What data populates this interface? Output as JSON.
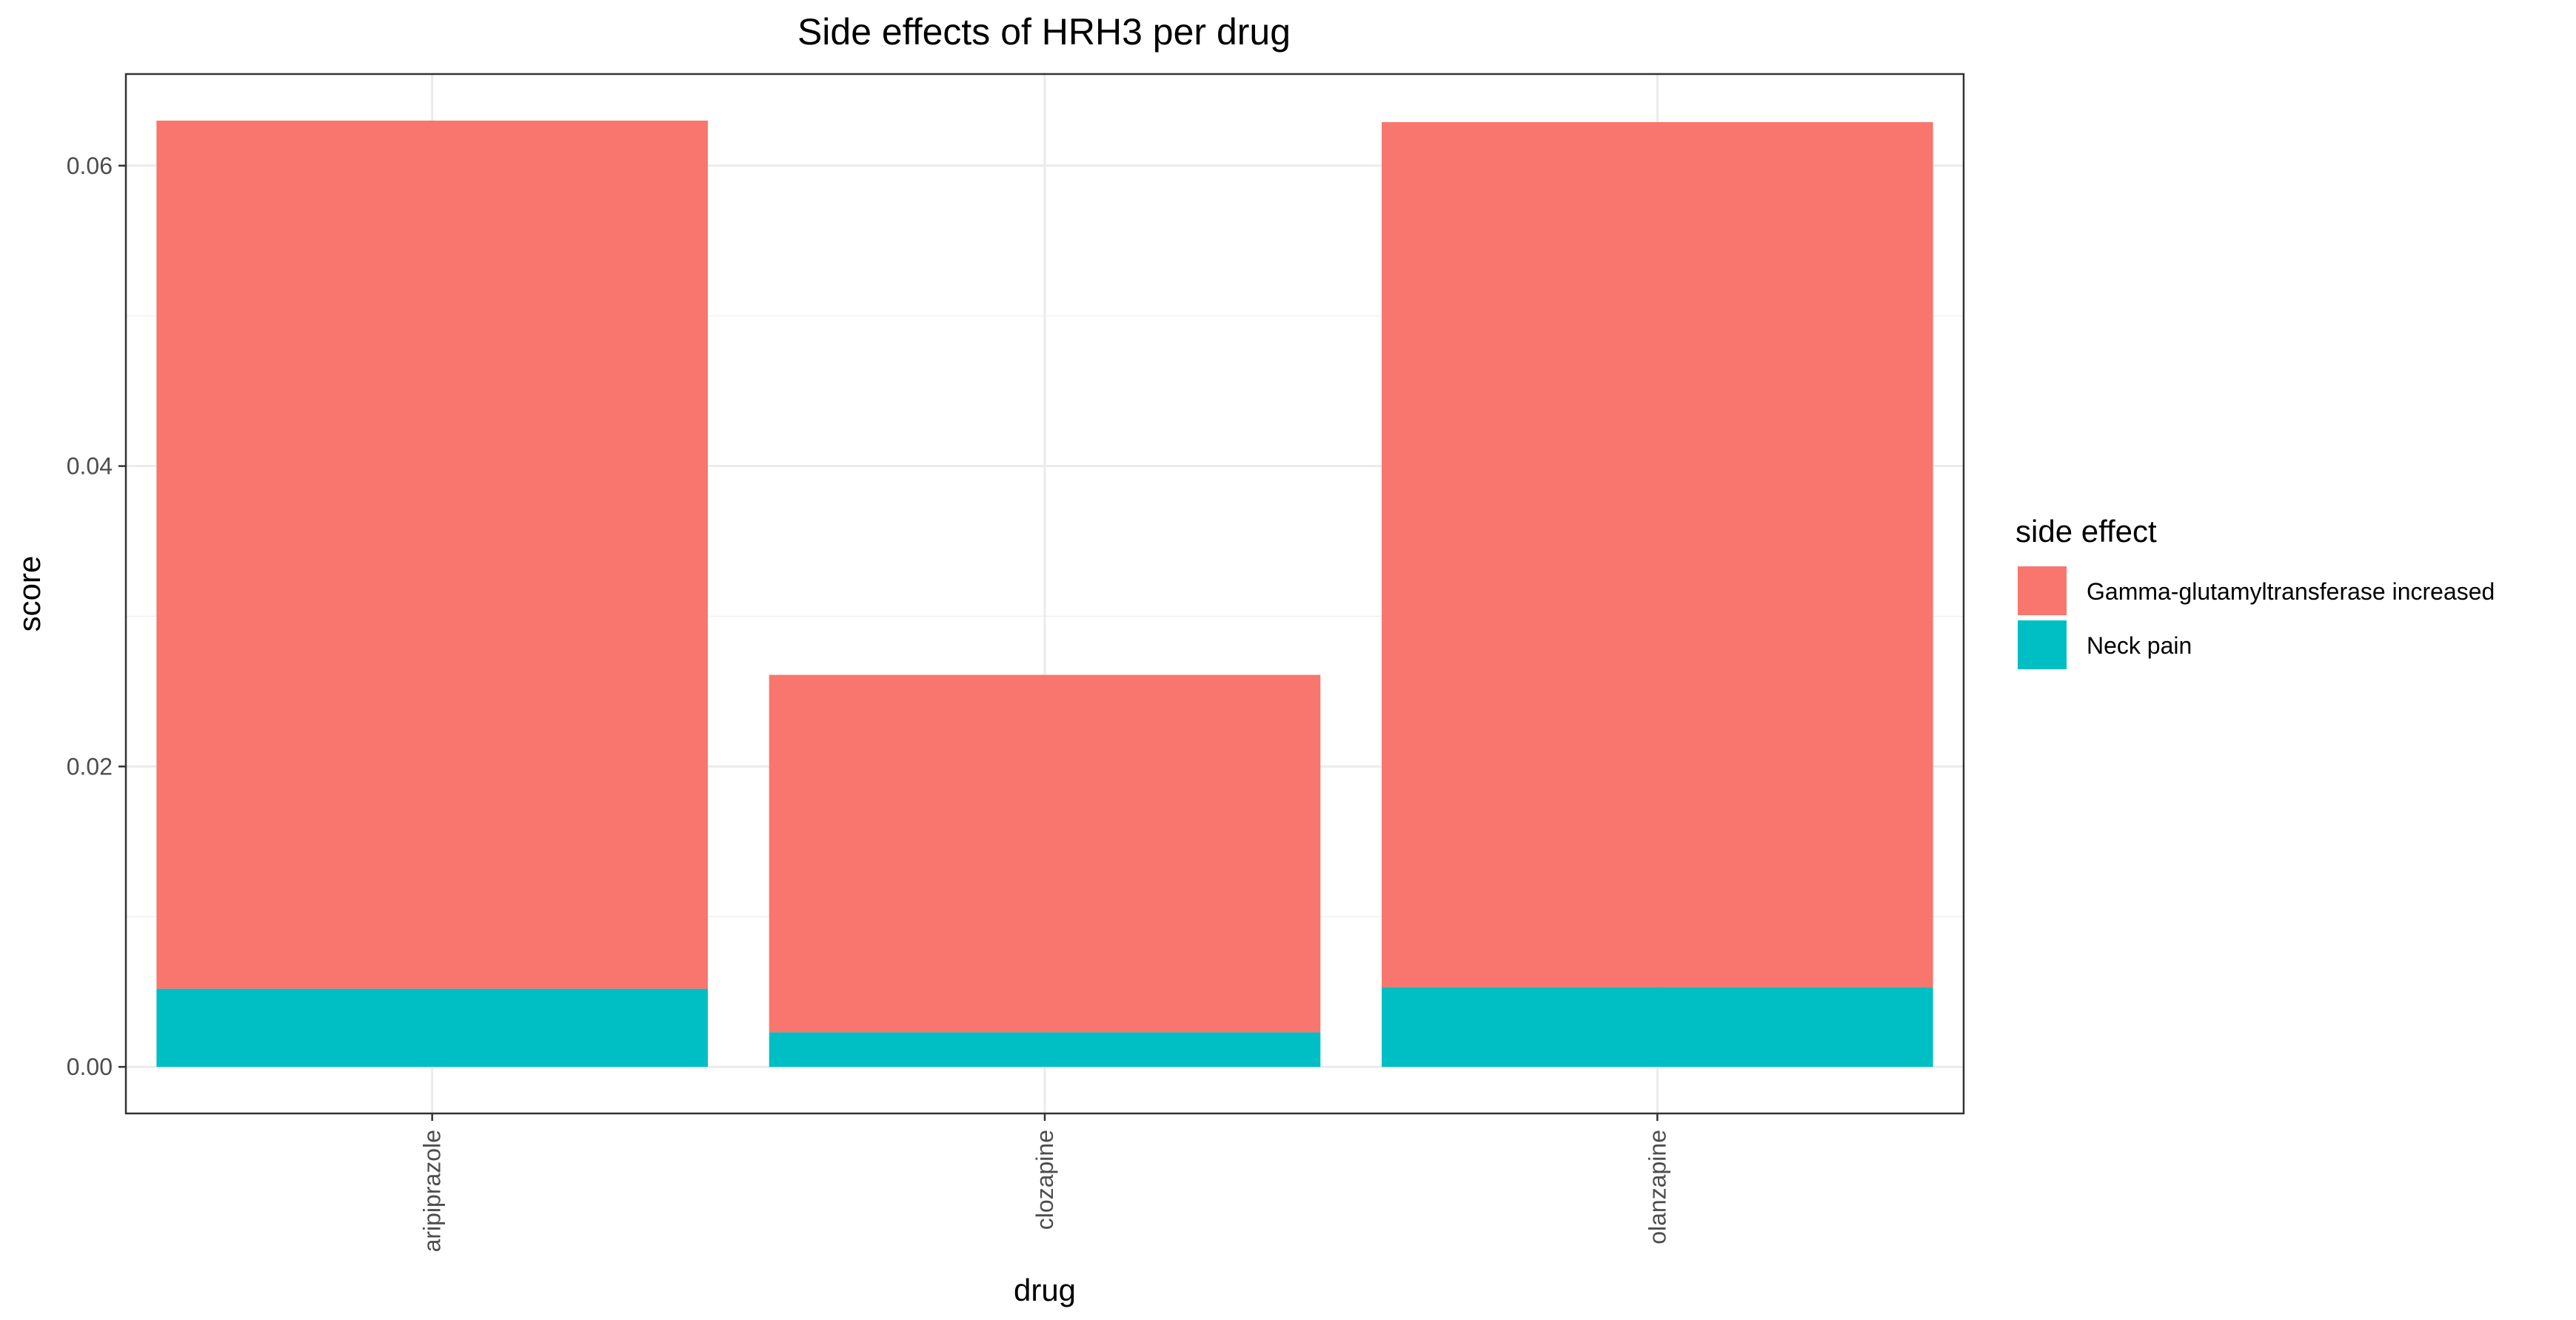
{
  "chart_data": {
    "type": "bar",
    "stacked": true,
    "title": "Side effects of HRH3 per drug",
    "xlabel": "drug",
    "ylabel": "score",
    "categories": [
      "aripiprazole",
      "clozapine",
      "olanzapine"
    ],
    "series": [
      {
        "name": "Neck pain",
        "color": "#00BFC4",
        "values": [
          0.0052,
          0.0023,
          0.0053
        ]
      },
      {
        "name": "Gamma-glutamyltransferase increased",
        "color": "#F8766D",
        "values": [
          0.0578,
          0.0238,
          0.0576
        ]
      }
    ],
    "ylim": [
      -0.0031,
      0.0661
    ],
    "yticks": [
      0.0,
      0.02,
      0.04,
      0.06
    ],
    "ytick_labels": [
      "0.00",
      "0.02",
      "0.04",
      "0.06"
    ],
    "grid": true,
    "legend": {
      "title": "side effect",
      "position": "right",
      "order": [
        "Gamma-glutamyltransferase increased",
        "Neck pain"
      ]
    }
  }
}
